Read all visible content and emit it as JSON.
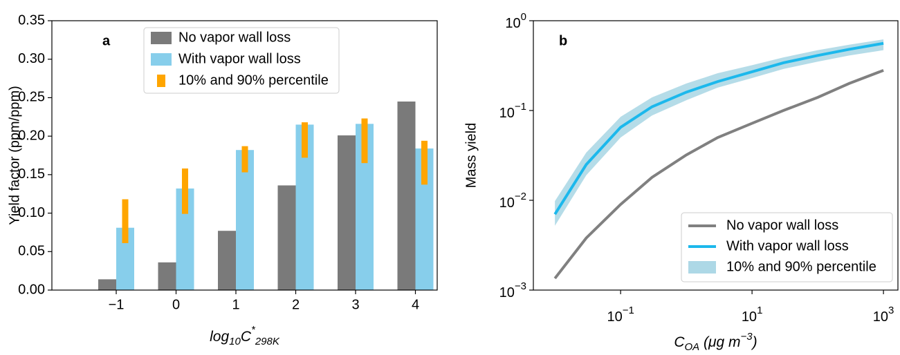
{
  "chart_data": [
    {
      "type": "bar",
      "panel_label": "a",
      "ylabel": "Yield factor (ppm/ppm)",
      "xlabel": [
        "log",
        "10",
        "C",
        "*",
        "298K"
      ],
      "categories": [
        "−1",
        "0",
        "1",
        "2",
        "3",
        "4"
      ],
      "series": [
        {
          "name": "No vapor wall loss",
          "color": "#7a7a7a",
          "values": [
            0.014,
            0.036,
            0.077,
            0.136,
            0.201,
            0.245
          ]
        },
        {
          "name": "With vapor wall loss",
          "color": "#87ceeb",
          "values": [
            0.081,
            0.132,
            0.182,
            0.215,
            0.216,
            0.184
          ]
        },
        {
          "name": "10% and 90% percentile",
          "color": "#ffa500",
          "low": [
            0.061,
            0.099,
            0.153,
            0.172,
            0.165,
            0.137
          ],
          "high": [
            0.118,
            0.158,
            0.187,
            0.218,
            0.223,
            0.194
          ]
        }
      ],
      "ylim": [
        0,
        0.35
      ],
      "yticks": [
        {
          "value": 0,
          "label": "0.00"
        },
        0.05,
        {
          "value": 0.1,
          "label": "0.10"
        },
        0.15,
        {
          "value": 0.2,
          "label": "0.20"
        },
        0.25,
        {
          "value": 0.3,
          "label": "0.30"
        },
        0.35
      ],
      "legend": "upper center"
    },
    {
      "type": "line",
      "panel_label": "b",
      "ylabel": "Mass yield",
      "xlabel": [
        "C",
        "OA",
        " (μg m",
        "−3",
        ")"
      ],
      "log_x": true,
      "log_y": true,
      "x": [
        0.01,
        0.03,
        0.1,
        0.3,
        1,
        3,
        10,
        30,
        100,
        300,
        1000
      ],
      "series": [
        {
          "name": "No vapor wall loss",
          "color": "#808080",
          "values": [
            0.00135,
            0.0038,
            0.009,
            0.018,
            0.032,
            0.05,
            0.072,
            0.1,
            0.14,
            0.2,
            0.28
          ]
        },
        {
          "name": "With vapor wall loss",
          "color": "#1cb8ec",
          "values": [
            0.007,
            0.025,
            0.065,
            0.11,
            0.16,
            0.21,
            0.27,
            0.34,
            0.41,
            0.48,
            0.56
          ]
        },
        {
          "name": "10% and 90% percentile",
          "color": "#add8e6",
          "low": [
            0.0052,
            0.019,
            0.05,
            0.088,
            0.13,
            0.18,
            0.23,
            0.29,
            0.35,
            0.41,
            0.47
          ],
          "high": [
            0.0098,
            0.034,
            0.085,
            0.14,
            0.2,
            0.26,
            0.32,
            0.39,
            0.47,
            0.54,
            0.62
          ]
        }
      ],
      "xlim": [
        0.0047,
        1660
      ],
      "ylim": [
        0.001,
        1
      ],
      "xticks": [
        {
          "value": 0.1,
          "label": "10",
          "exponent": "−1"
        },
        {
          "value": 10,
          "label": "10",
          "exponent": "1"
        },
        {
          "value": 1000,
          "label": "10",
          "exponent": "3"
        }
      ],
      "yticks": [
        {
          "value": 0.001,
          "label": "10",
          "exponent": "−3"
        },
        {
          "value": 0.01,
          "label": "10",
          "exponent": "−2"
        },
        {
          "value": 0.1,
          "label": "10",
          "exponent": "−1"
        },
        {
          "value": 1,
          "label": "10",
          "exponent": "0"
        }
      ],
      "legend": "lower right"
    }
  ]
}
